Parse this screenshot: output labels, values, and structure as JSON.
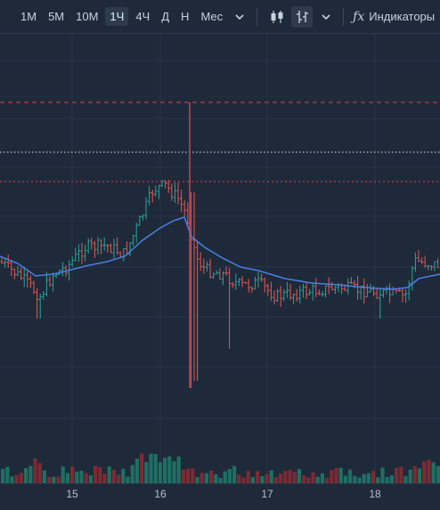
{
  "toolbar": {
    "timeframes": [
      "1М",
      "5М",
      "10М",
      "1Ч",
      "4Ч",
      "Д",
      "Н",
      "Мес"
    ],
    "active_timeframe": "1Ч",
    "indicators_label": "Индикаторы"
  },
  "colors": {
    "background": "#1e2a3a",
    "grid": "#263446",
    "up": "#26a69a",
    "down": "#ef5350",
    "ma": "#4a7fe0",
    "crosshair": "#e0404a"
  },
  "chart_data": {
    "type": "candlestick",
    "x_ticks": [
      "15",
      "16",
      "17",
      "18"
    ],
    "reference_lines": [
      {
        "style": "dashed",
        "color": "red"
      },
      {
        "style": "dotted",
        "color": "white"
      },
      {
        "style": "dotted",
        "color": "red"
      }
    ]
  }
}
